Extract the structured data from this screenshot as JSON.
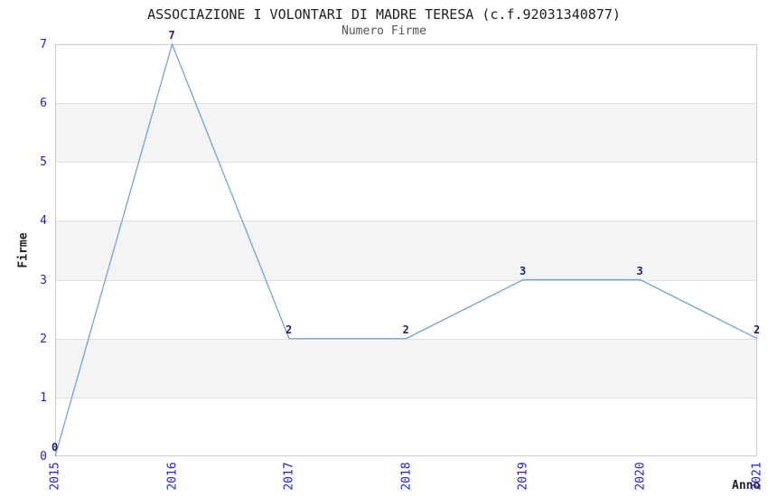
{
  "chart_data": {
    "type": "line",
    "title": "ASSOCIAZIONE I VOLONTARI DI MADRE TERESA (c.f.92031340877)",
    "subtitle": "Numero Firme",
    "xlabel": "Anno",
    "ylabel": "Firme",
    "categories": [
      "2015",
      "2016",
      "2017",
      "2018",
      "2019",
      "2020",
      "2021"
    ],
    "values": [
      0,
      7,
      2,
      2,
      3,
      3,
      2
    ],
    "ylim": [
      0,
      7
    ],
    "ytick_step": 1,
    "grid": "horizontal-bands",
    "legend": "none",
    "point_labels": [
      "0",
      "7",
      "2",
      "2",
      "3",
      "3",
      "2"
    ],
    "colors": {
      "line": "#6FA4DC",
      "tick_label": "#2222DD",
      "point_label": "#202080",
      "band_gray": "#F4F4F4",
      "band_white": "#FFFFFF",
      "gridline": "#E0E0E0",
      "plot_border": "#CCCCCC",
      "title": "#222222",
      "subtitle": "#555555",
      "axis_title": "#222222",
      "background": "#FFFFFF"
    }
  }
}
